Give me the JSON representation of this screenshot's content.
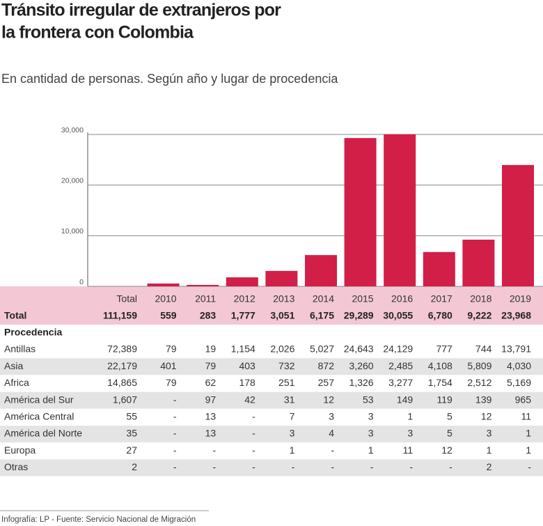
{
  "title_lines": [
    "Tránsito irregular de extranjeros por",
    "la frontera con Colombia"
  ],
  "subtitle": "En cantidad de personas. Según año y lugar de procedencia",
  "chart_data": {
    "type": "bar",
    "categories": [
      "2010",
      "2011",
      "2012",
      "2013",
      "2014",
      "2015",
      "2016",
      "2017",
      "2018",
      "2019"
    ],
    "values": [
      559,
      283,
      1777,
      3051,
      6175,
      29289,
      30055,
      6780,
      9222,
      23968
    ],
    "value_labels": [
      "559",
      "283",
      "1,777",
      "3,051",
      "6,175",
      "29,289",
      "30,055",
      "6,780",
      "9,222",
      "23,968"
    ],
    "color": "#d11f48",
    "ylim": [
      0,
      30000
    ],
    "yticks": [
      0,
      {
        "value": 10000,
        "label": "10,000"
      },
      {
        "value": 20000,
        "label": "20,000"
      },
      {
        "value": 30000,
        "label": "30,000"
      }
    ],
    "grid": true
  },
  "table": {
    "total_header": "Total",
    "total_row_label": "Total",
    "total_overall": "111,159",
    "section": "Procedencia",
    "rows": [
      [
        "Antillas",
        "72,389",
        "79",
        "19",
        "1,154",
        "2,026",
        "5,027",
        "24,643",
        "24,129",
        "777",
        "744",
        "13,791"
      ],
      [
        "Asia",
        "22,179",
        "401",
        "79",
        "403",
        "732",
        "872",
        "3,260",
        "2,485",
        "4,108",
        "5,809",
        "4,030"
      ],
      [
        "Africa",
        "14,865",
        "79",
        "62",
        "178",
        "251",
        "257",
        "1,326",
        "3,277",
        "1,754",
        "2,512",
        "5,169"
      ],
      [
        "América del Sur",
        "1,607",
        "-",
        "97",
        "42",
        "31",
        "12",
        "53",
        "149",
        "119",
        "139",
        "965"
      ],
      [
        "América Central",
        "55",
        "-",
        "13",
        "-",
        "7",
        "3",
        "3",
        "1",
        "5",
        "12",
        "11"
      ],
      [
        "América del Norte",
        "35",
        "-",
        "13",
        "-",
        "3",
        "4",
        "3",
        "3",
        "5",
        "3",
        "1"
      ],
      [
        "Europa",
        "27",
        "-",
        "-",
        "-",
        "1",
        "-",
        "1",
        "11",
        "12",
        "1",
        "1"
      ],
      [
        "Otras",
        "2",
        "-",
        "-",
        "-",
        "-",
        "-",
        "-",
        "-",
        "-",
        "2",
        "-"
      ]
    ]
  },
  "footer": "Infografía: LP - Fuente: Servicio Nacional de Migración"
}
